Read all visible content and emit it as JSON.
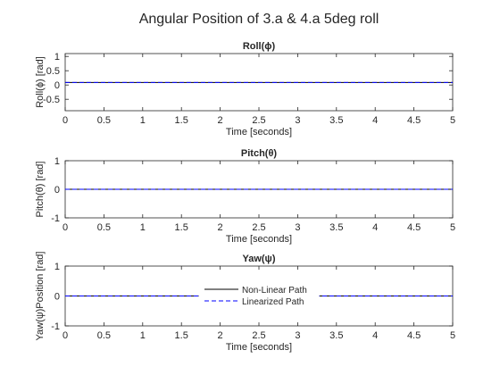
{
  "figure": {
    "suptitle": "Angular Position of 3.a & 4.a 5deg roll"
  },
  "colors": {
    "nonlinear": "#000000",
    "linearized": "#0000ff",
    "axis": "#262626"
  },
  "chart_data": [
    {
      "type": "line",
      "title": "Roll(ϕ)",
      "xlabel": "Time [seconds]",
      "ylabel": "Roll(ϕ) [rad]",
      "xlim": [
        0,
        5
      ],
      "ylim": [
        -0.9,
        1.1
      ],
      "xticks": [
        0,
        0.5,
        1,
        1.5,
        2,
        2.5,
        3,
        3.5,
        4,
        4.5,
        5
      ],
      "xticklabels": [
        "0",
        "0.5",
        "1",
        "1.5",
        "2",
        "2.5",
        "3",
        "3.5",
        "4",
        "4.5",
        "5"
      ],
      "yticks": [
        -0.5,
        0,
        0.5,
        1
      ],
      "yticklabels": [
        "-0.5",
        "0",
        "0.5",
        "1"
      ],
      "series": [
        {
          "key": "nonlinear",
          "x": [
            0,
            5
          ],
          "y": [
            0.087,
            0.087
          ]
        },
        {
          "key": "linearized",
          "x": [
            0,
            5
          ],
          "y": [
            0.087,
            0.087
          ]
        }
      ]
    },
    {
      "type": "line",
      "title": "Pitch(θ)",
      "xlabel": "Time [seconds]",
      "ylabel": "Pitch(θ) [rad]",
      "xlim": [
        0,
        5
      ],
      "ylim": [
        -1,
        1
      ],
      "xticks": [
        0,
        0.5,
        1,
        1.5,
        2,
        2.5,
        3,
        3.5,
        4,
        4.5,
        5
      ],
      "xticklabels": [
        "0",
        "0.5",
        "1",
        "1.5",
        "2",
        "2.5",
        "3",
        "3.5",
        "4",
        "4.5",
        "5"
      ],
      "yticks": [
        -1,
        0,
        1
      ],
      "yticklabels": [
        "-1",
        "0",
        "1"
      ],
      "series": [
        {
          "key": "nonlinear",
          "x": [
            0,
            5
          ],
          "y": [
            0,
            0
          ]
        },
        {
          "key": "linearized",
          "x": [
            0,
            5
          ],
          "y": [
            0,
            0
          ]
        }
      ]
    },
    {
      "type": "line",
      "title": "Yaw(ψ)",
      "xlabel": "Time [seconds]",
      "ylabel": "Yaw(ψ)Position [rad]",
      "xlim": [
        0,
        5
      ],
      "ylim": [
        -1,
        1
      ],
      "xticks": [
        0,
        0.5,
        1,
        1.5,
        2,
        2.5,
        3,
        3.5,
        4,
        4.5,
        5
      ],
      "xticklabels": [
        "0",
        "0.5",
        "1",
        "1.5",
        "2",
        "2.5",
        "3",
        "3.5",
        "4",
        "4.5",
        "5"
      ],
      "yticks": [
        -1,
        0,
        1
      ],
      "yticklabels": [
        "-1",
        "0",
        "1"
      ],
      "legend": {
        "placement": "center",
        "entries": [
          "Non-Linear Path",
          "Linearized Path"
        ]
      },
      "series": [
        {
          "key": "nonlinear",
          "x": [
            0,
            5
          ],
          "y": [
            0,
            0
          ]
        },
        {
          "key": "linearized",
          "x": [
            0,
            5
          ],
          "y": [
            0,
            0
          ]
        }
      ]
    }
  ]
}
